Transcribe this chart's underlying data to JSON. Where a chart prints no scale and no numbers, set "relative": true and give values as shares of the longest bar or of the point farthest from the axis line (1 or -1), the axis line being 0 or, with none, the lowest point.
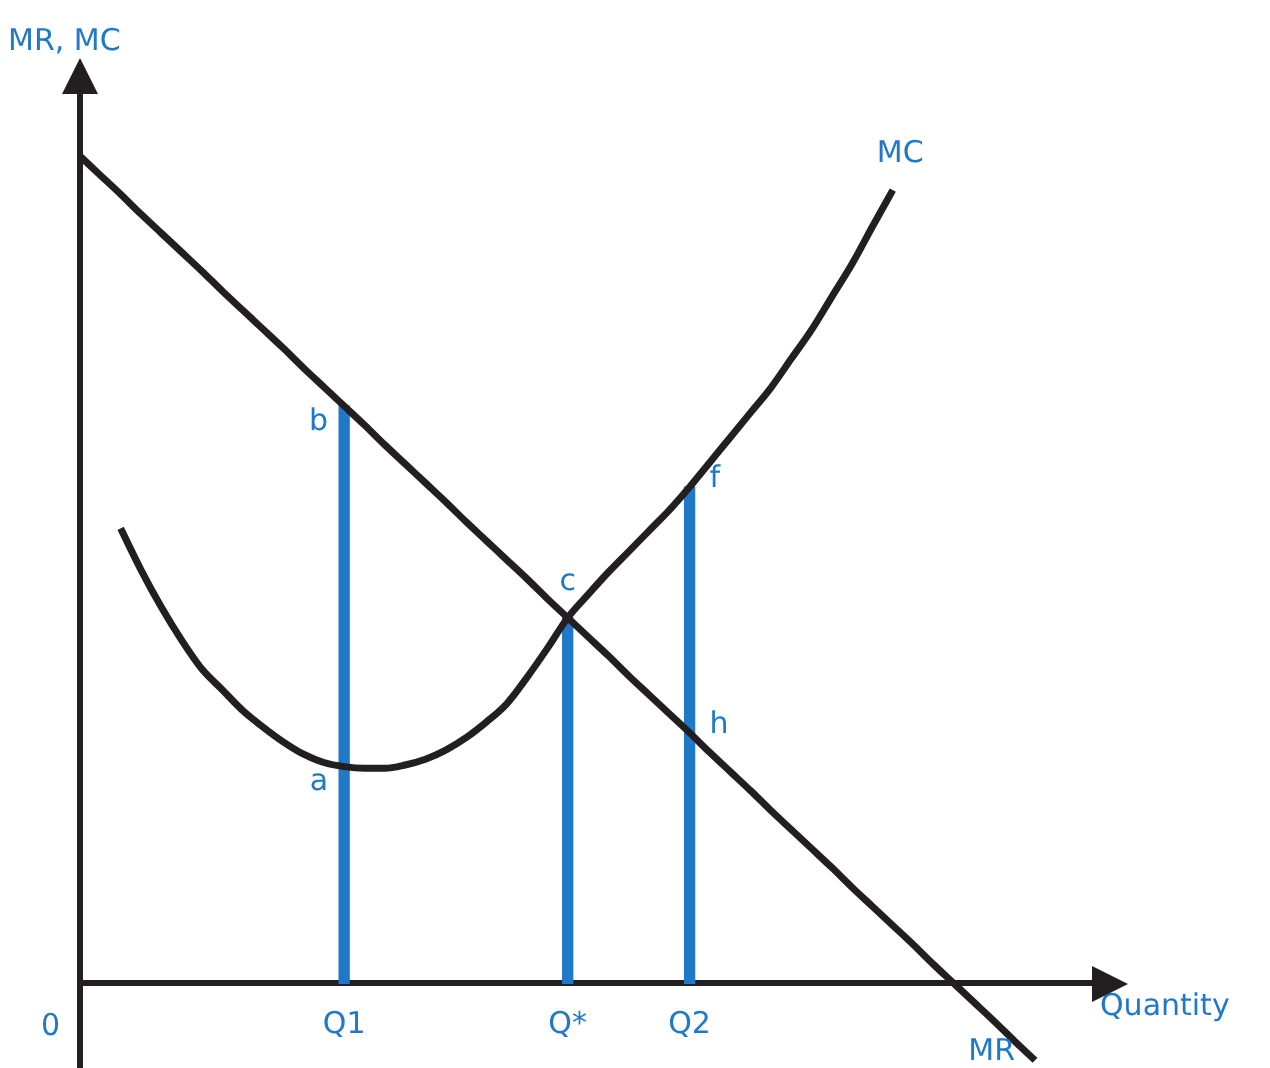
{
  "chart_data": {
    "type": "line",
    "relative": true,
    "xlabel": "Quantity",
    "ylabel": "MR, MC",
    "tick_labels": "x",
    "grid": false,
    "legend": false,
    "marker": "none",
    "line_style": "solid",
    "categories": [
      null,
      null,
      null,
      null,
      null,
      null,
      null,
      null,
      null,
      null,
      null,
      null,
      null,
      "Q1",
      null,
      null,
      null,
      null,
      null,
      null,
      null,
      null,
      null,
      null,
      "Q*",
      null,
      null,
      null,
      null,
      null,
      "Q2",
      null,
      null,
      null,
      null,
      null,
      null,
      null,
      null,
      null,
      null,
      null,
      null,
      null,
      null,
      null,
      null,
      null,
      null,
      null,
      null
    ],
    "series": [
      {
        "name": "MR",
        "color": "#231f20",
        "values": [
          1,
          0.977,
          0.954,
          0.93,
          0.907,
          0.884,
          0.861,
          0.837,
          0.814,
          0.791,
          0.768,
          0.744,
          0.721,
          0.698,
          0.675,
          0.651,
          0.628,
          0.605,
          0.582,
          0.558,
          0.535,
          0.512,
          0.489,
          0.465,
          0.442,
          0.419,
          0.396,
          0.372,
          0.349,
          0.326,
          0.303,
          0.279,
          0.256,
          0.233,
          0.209,
          0.186,
          0.163,
          0.14,
          0.116,
          0.093,
          0.07,
          0.047,
          0.023,
          0,
          -0.023,
          -0.046,
          -0.07,
          -0.093,
          null,
          null,
          null
        ]
      },
      {
        "name": "MC",
        "color": "#231f20",
        "values": [
          null,
          null,
          0.55,
          0.5,
          0.455,
          0.415,
          0.38,
          0.355,
          0.33,
          0.31,
          0.292,
          0.277,
          0.267,
          0.262,
          0.26,
          0.26,
          0.264,
          0.271,
          0.282,
          0.297,
          0.316,
          0.338,
          0.37,
          0.405,
          0.442,
          0.47,
          0.497,
          0.522,
          0.547,
          0.572,
          0.6,
          0.63,
          0.66,
          0.69,
          0.72,
          0.755,
          0.79,
          0.83,
          0.87,
          0.915,
          0.959,
          null,
          null,
          null,
          null,
          null,
          null,
          null,
          null,
          null,
          null
        ]
      },
      {
        "type": "bar",
        "color": "#1f78c8",
        "values": [
          null,
          null,
          null,
          null,
          null,
          null,
          null,
          null,
          null,
          null,
          null,
          null,
          null,
          0.698,
          null,
          null,
          null,
          null,
          null,
          null,
          null,
          null,
          null,
          null,
          0.442,
          null,
          null,
          null,
          null,
          null,
          0.6,
          null,
          null,
          null,
          null,
          null,
          null,
          null,
          null,
          null,
          null,
          null,
          null,
          null,
          null,
          null,
          null,
          null,
          null,
          null,
          null
        ]
      }
    ],
    "annotations": [
      "0",
      {
        "text": "a",
        "x": "Q1",
        "y": 0.262
      },
      {
        "text": "b",
        "x": "Q1",
        "y": 0.698
      },
      {
        "text": "c",
        "x": "Q*",
        "y": 0.442
      },
      {
        "text": "f",
        "x": "Q2",
        "y": 0.6
      },
      {
        "text": "h",
        "x": "Q2",
        "y": 0.303
      }
    ]
  }
}
